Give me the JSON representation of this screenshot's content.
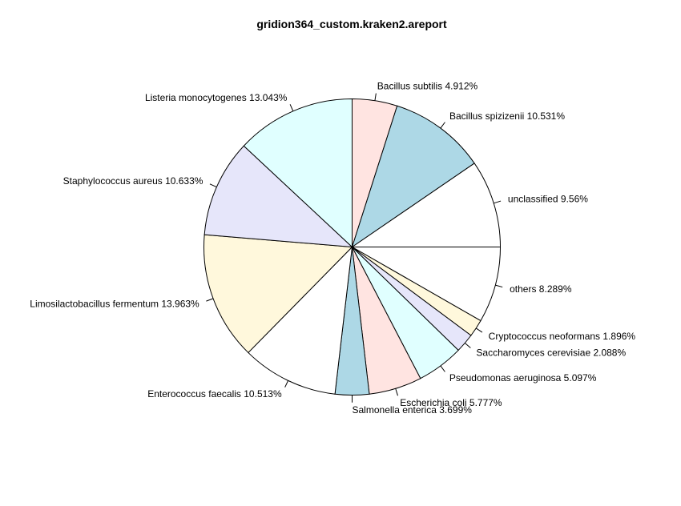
{
  "chart_data": {
    "type": "pie",
    "title": "gridion364_custom.kraken2.areport",
    "start_angle_deg": 90,
    "direction": "clockwise",
    "slices": [
      {
        "label": "Bacillus subtilis 4.912%",
        "value": 4.912,
        "color": "#ffe4e1"
      },
      {
        "label": "Bacillus spizizenii 10.531%",
        "value": 10.531,
        "color": "#add8e6"
      },
      {
        "label": "unclassified 9.56%",
        "value": 9.56,
        "color": "#ffffff"
      },
      {
        "label": "others 8.289%",
        "value": 8.289,
        "color": "#ffffff"
      },
      {
        "label": "Cryptococcus neoformans 1.896%",
        "value": 1.896,
        "color": "#fff8dc"
      },
      {
        "label": "Saccharomyces cerevisiae 2.088%",
        "value": 2.088,
        "color": "#e6e6fa"
      },
      {
        "label": "Pseudomonas aeruginosa 5.097%",
        "value": 5.097,
        "color": "#e0ffff"
      },
      {
        "label": "Escherichia coli 5.777%",
        "value": 5.777,
        "color": "#ffe4e1"
      },
      {
        "label": "Salmonella enterica 3.699%",
        "value": 3.699,
        "color": "#add8e6"
      },
      {
        "label": "Enterococcus faecalis 10.513%",
        "value": 10.513,
        "color": "#ffffff"
      },
      {
        "label": "Limosilactobacillus fermentum 13.963%",
        "value": 13.963,
        "color": "#fff8dc"
      },
      {
        "label": "Staphylococcus aureus 10.633%",
        "value": 10.633,
        "color": "#e6e6fa"
      },
      {
        "label": "Listeria monocytogenes 13.043%",
        "value": 13.043,
        "color": "#e0ffff"
      }
    ]
  }
}
